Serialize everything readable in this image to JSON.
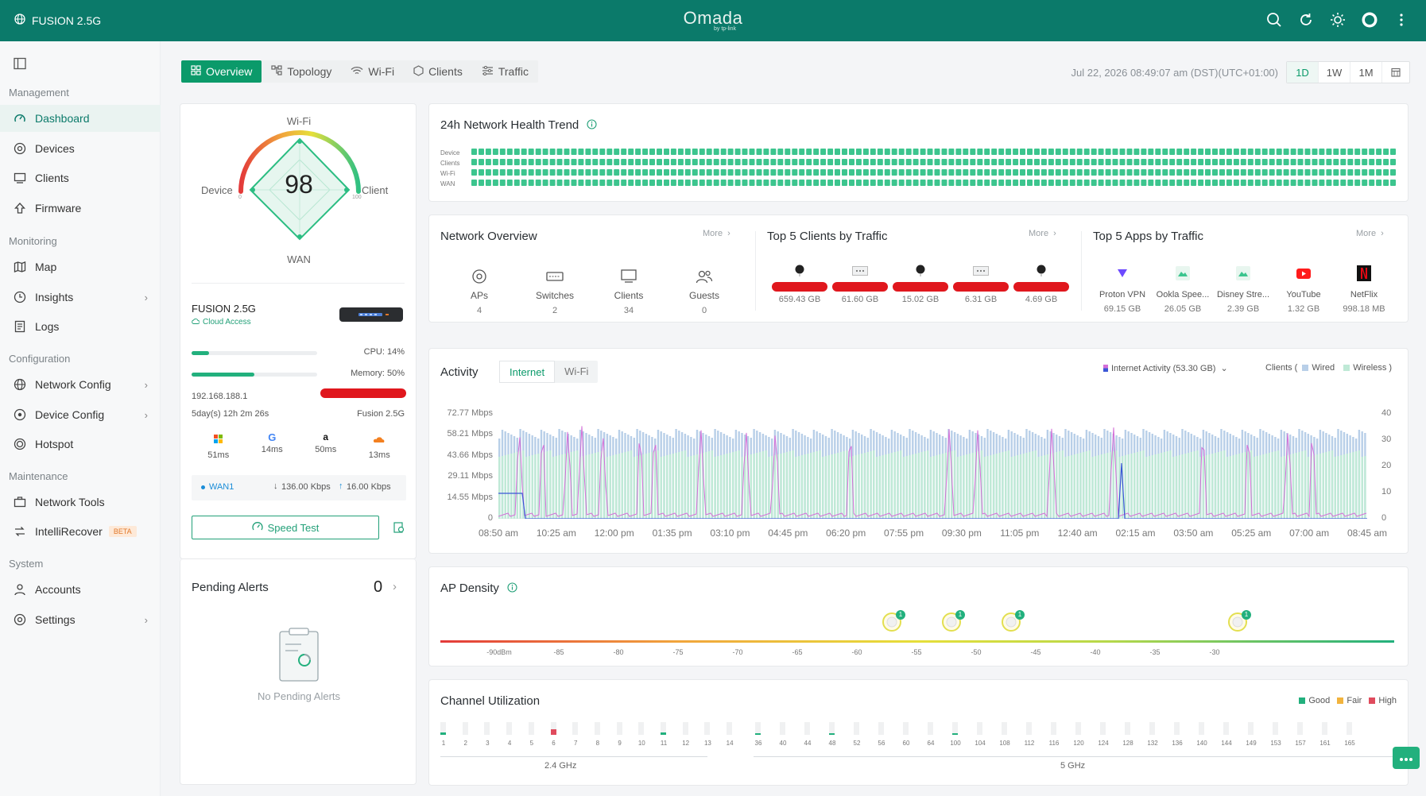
{
  "header": {
    "site_name": "FUSION 2.5G",
    "brand": "Omada",
    "brand_sub": "by tp-link"
  },
  "sidebar": {
    "sections": {
      "management": "Management",
      "monitoring": "Monitoring",
      "configuration": "Configuration",
      "maintenance": "Maintenance",
      "system": "System"
    },
    "items": [
      {
        "label": "Dashboard",
        "icon": "dashboard-icon",
        "active": true
      },
      {
        "label": "Devices",
        "icon": "devices-icon"
      },
      {
        "label": "Clients",
        "icon": "clients-icon"
      },
      {
        "label": "Firmware",
        "icon": "firmware-icon"
      },
      {
        "label": "Map",
        "icon": "map-icon"
      },
      {
        "label": "Insights",
        "icon": "insights-icon"
      },
      {
        "label": "Logs",
        "icon": "logs-icon"
      },
      {
        "label": "Network Config",
        "icon": "globe-icon"
      },
      {
        "label": "Device Config",
        "icon": "device-config-icon"
      },
      {
        "label": "Hotspot",
        "icon": "hotspot-icon"
      },
      {
        "label": "Network Tools",
        "icon": "toolbox-icon"
      },
      {
        "label": "IntelliRecover",
        "icon": "recover-icon",
        "badge": "BETA"
      },
      {
        "label": "Accounts",
        "icon": "user-icon"
      },
      {
        "label": "Settings",
        "icon": "settings-icon"
      }
    ]
  },
  "tabs": [
    "Overview",
    "Topology",
    "Wi-Fi",
    "Clients",
    "Traffic"
  ],
  "datetime": "Jul 22, 2026 08:49:07 am (DST)(UTC+01:00)",
  "ranges": [
    "1D",
    "1W",
    "1M"
  ],
  "health": {
    "score": "98",
    "labels": {
      "top": "Wi-Fi",
      "left": "Device",
      "right": "Client",
      "bottom": "WAN"
    },
    "scale_min": "0",
    "scale_max": "100"
  },
  "gateway": {
    "name": "FUSION 2.5G",
    "cloud": "Cloud Access",
    "cpu_label": "CPU: 14%",
    "cpu": 14,
    "memory_label": "Memory: 50%",
    "memory": 50,
    "ip": "192.168.188.1",
    "uptime": "5day(s) 12h 2m 26s",
    "model": "Fusion 2.5G",
    "latency": [
      {
        "icon": "microsoft-icon",
        "value": "51ms"
      },
      {
        "icon": "google-icon",
        "value": "14ms"
      },
      {
        "icon": "amazon-icon",
        "value": "50ms"
      },
      {
        "icon": "cloudflare-icon",
        "value": "13ms"
      }
    ],
    "wan_name": "WAN1",
    "wan_down": "136.00 Kbps",
    "wan_up": "16.00 Kbps",
    "speed_test": "Speed Test"
  },
  "alerts": {
    "title": "Pending Alerts",
    "count": "0",
    "empty_text": "No Pending Alerts"
  },
  "trend": {
    "title": "24h Network Health Trend",
    "rows": [
      "Device",
      "Clients",
      "Wi-Fi",
      "WAN"
    ],
    "color": "#3cc58e"
  },
  "network_overview": {
    "title": "Network Overview",
    "more": "More",
    "items": [
      {
        "label": "APs",
        "value": "4",
        "icon": "ap-icon"
      },
      {
        "label": "Switches",
        "value": "2",
        "icon": "switch-icon"
      },
      {
        "label": "Clients",
        "value": "34",
        "icon": "monitor-icon"
      },
      {
        "label": "Guests",
        "value": "0",
        "icon": "guests-icon"
      }
    ]
  },
  "top_clients": {
    "title": "Top 5 Clients by Traffic",
    "more": "More",
    "values": [
      "659.43 GB",
      "61.60 GB",
      "15.02 GB",
      "6.31 GB",
      "4.69 GB"
    ]
  },
  "top_apps": {
    "title": "Top 5 Apps by Traffic",
    "more": "More",
    "items": [
      {
        "name": "Proton VPN",
        "value": "69.15 GB",
        "icon": "protonvpn-icon",
        "color": "#6d4aff"
      },
      {
        "name": "Ookla Spee...",
        "value": "26.05 GB",
        "icon": "app-icon",
        "color": "#3cc58e"
      },
      {
        "name": "Disney Stre...",
        "value": "2.39 GB",
        "icon": "app-icon",
        "color": "#3cc58e"
      },
      {
        "name": "YouTube",
        "value": "1.32 GB",
        "icon": "youtube-icon",
        "color": "#ff1b1b"
      },
      {
        "name": "NetFlix",
        "value": "998.18 MB",
        "icon": "netflix-icon",
        "color": "#e50914"
      }
    ]
  },
  "activity": {
    "title": "Activity",
    "tabs": [
      "Internet",
      "Wi-Fi"
    ],
    "legend_internet": "Internet Activity (53.30 GB)",
    "legend_clients_prefix": "Clients (",
    "legend_wired": "Wired",
    "legend_wireless": "Wireless )",
    "chart_data": {
      "type": "bar",
      "y_left_ticks": [
        "72.77 Mbps",
        "58.21 Mbps",
        "43.66 Mbps",
        "29.11 Mbps",
        "14.55 Mbps",
        "0"
      ],
      "y_right_ticks": [
        "40",
        "30",
        "20",
        "10",
        "0"
      ],
      "x_ticks": [
        "08:50 am",
        "10:25 am",
        "12:00 pm",
        "01:35 pm",
        "03:10 pm",
        "04:45 pm",
        "06:20 pm",
        "07:55 pm",
        "09:30 pm",
        "11:05 pm",
        "12:40 am",
        "02:15 am",
        "03:50 am",
        "05:25 am",
        "07:00 am",
        "08:45 am"
      ],
      "series": [
        {
          "name": "Wired",
          "color": "#b8cfe8"
        },
        {
          "name": "Wireless",
          "color": "#bfe9d6"
        },
        {
          "name": "Internet Activity",
          "color": "#d46fd8"
        }
      ]
    }
  },
  "ap_density": {
    "title": "AP Density",
    "ticks": [
      "-90dBm",
      "-85",
      "-80",
      "-75",
      "-70",
      "-65",
      "-60",
      "-55",
      "-50",
      "-45",
      "-40",
      "-35",
      "-30"
    ],
    "markers": [
      {
        "dbm": -57,
        "count": "1"
      },
      {
        "dbm": -52,
        "count": "1"
      },
      {
        "dbm": -47,
        "count": "1"
      },
      {
        "dbm": -28,
        "count": "1"
      }
    ]
  },
  "channel_util": {
    "title": "Channel Utilization",
    "legend": [
      {
        "label": "Good",
        "color": "#22b07d"
      },
      {
        "label": "Fair",
        "color": "#f2b33d"
      },
      {
        "label": "High",
        "color": "#e04b5d"
      }
    ],
    "band_24": "2.4 GHz",
    "band_5": "5 GHz",
    "ch24": [
      "1",
      "2",
      "3",
      "4",
      "5",
      "6",
      "7",
      "8",
      "9",
      "10",
      "11",
      "12",
      "13",
      "14"
    ],
    "ch5": [
      "36",
      "40",
      "44",
      "48",
      "52",
      "56",
      "60",
      "64",
      "100",
      "104",
      "108",
      "112",
      "116",
      "120",
      "124",
      "128",
      "132",
      "136",
      "140",
      "144",
      "149",
      "153",
      "157",
      "161",
      "165"
    ]
  }
}
